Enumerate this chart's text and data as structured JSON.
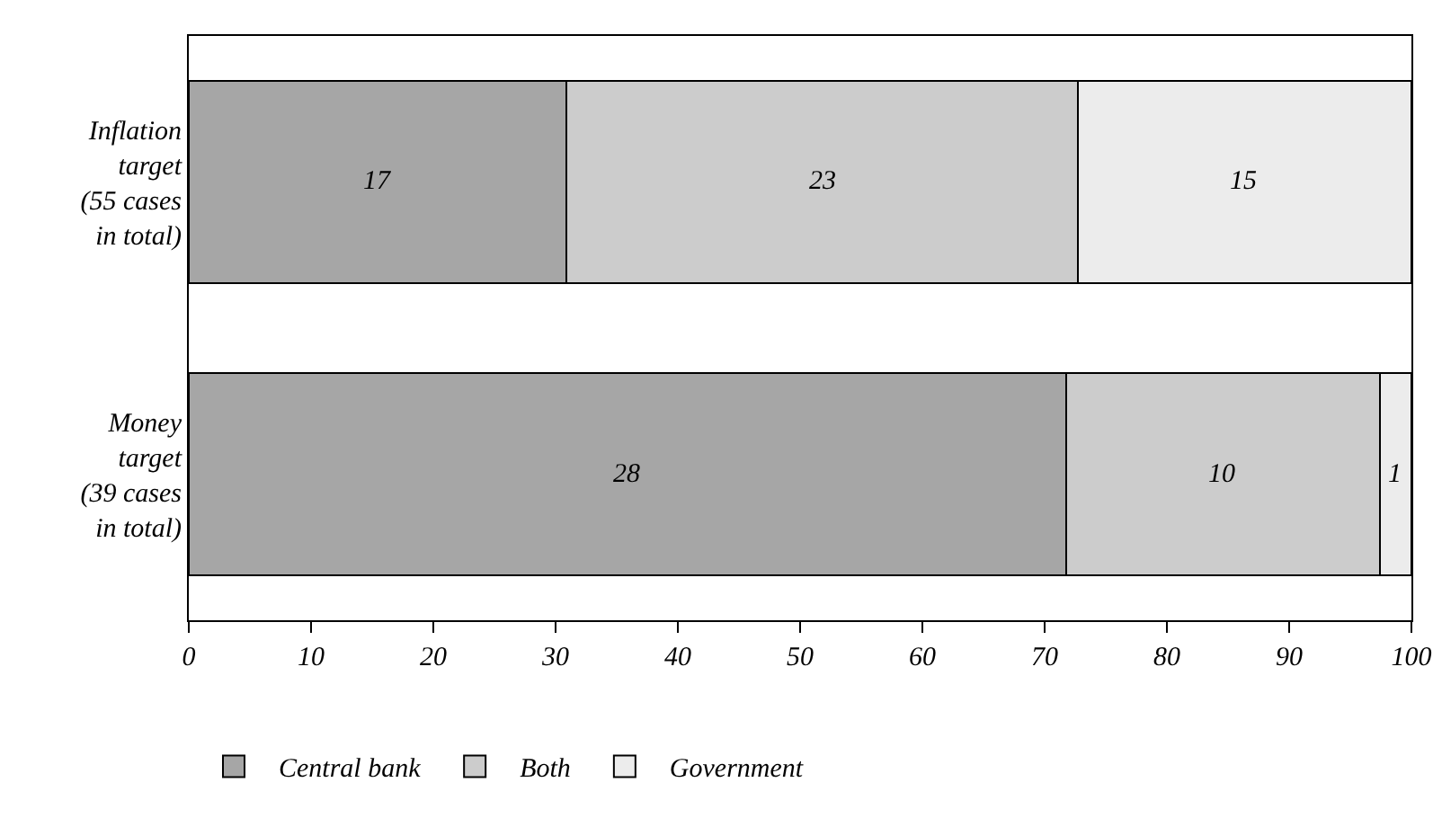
{
  "chart_data": {
    "type": "bar",
    "orientation": "horizontal",
    "stacked": true,
    "categories": [
      "Inflation target (55 cases in total)",
      "Money target (39 cases in total)"
    ],
    "series": [
      {
        "name": "Central bank",
        "color": "#a6a6a6",
        "values": [
          30.9,
          71.8
        ]
      },
      {
        "name": "Both",
        "color": "#cccccc",
        "values": [
          41.8,
          25.6
        ]
      },
      {
        "name": "Government",
        "color": "#ececec",
        "values": [
          27.3,
          2.6
        ]
      }
    ],
    "annotations": [
      "17",
      "23",
      "15",
      "28",
      "10",
      "1"
    ],
    "xlim": [
      0,
      100
    ],
    "xticks": [
      0,
      10,
      20,
      30,
      40,
      50,
      60,
      70,
      80,
      90,
      100
    ],
    "grid": false,
    "legend": "bottom left"
  }
}
